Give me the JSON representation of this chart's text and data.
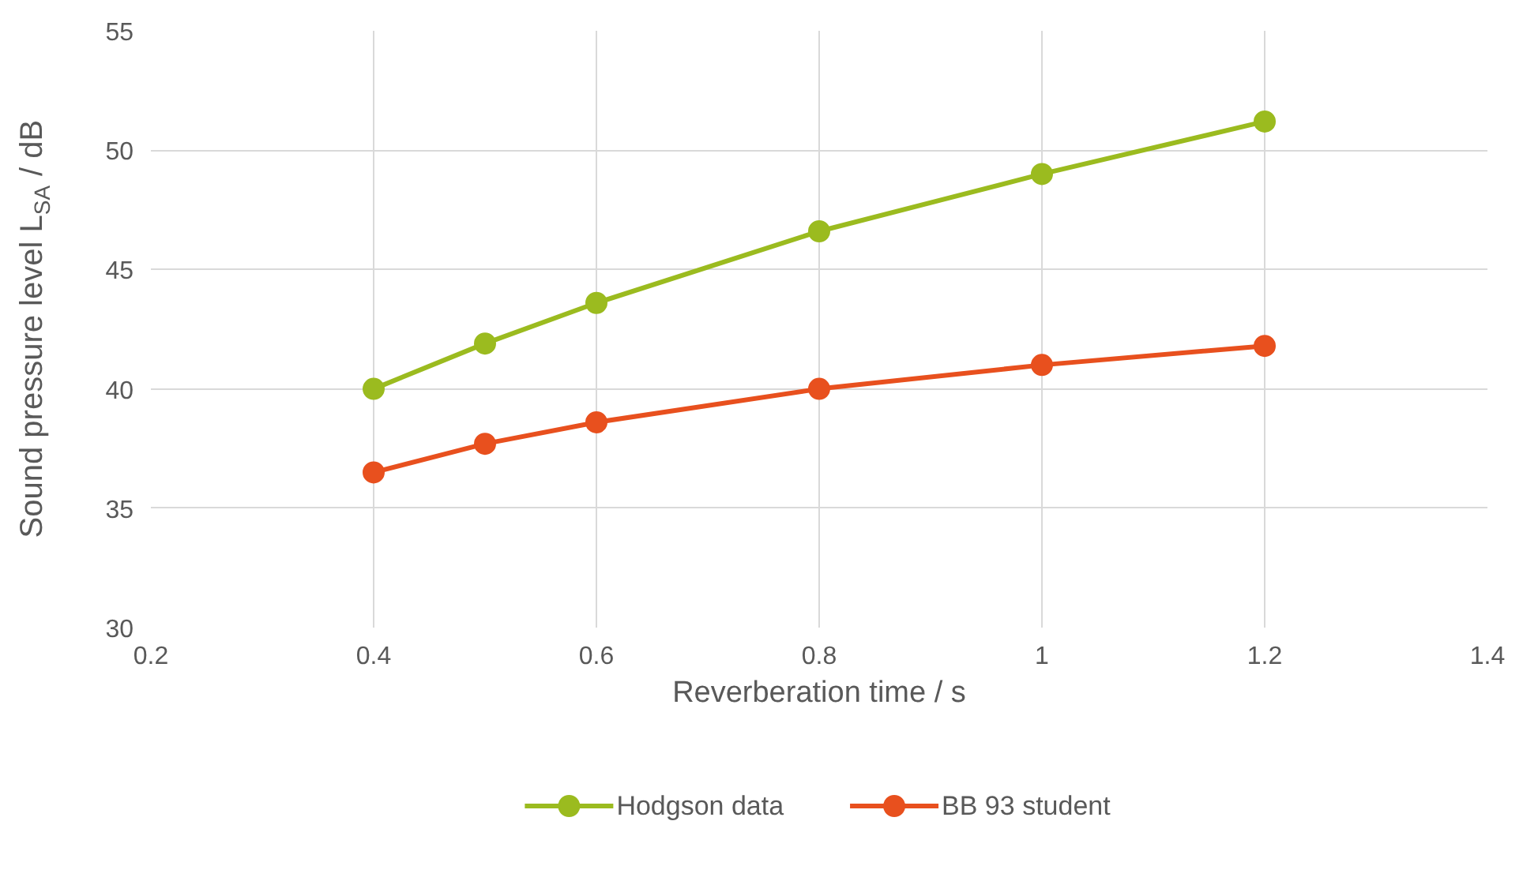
{
  "chart_data": {
    "type": "line",
    "xlabel": "Reverberation time / s",
    "ylabel": "Sound pressure level L$_{SA}$ / dB",
    "x": [
      0.4,
      0.5,
      0.6,
      0.8,
      1.0,
      1.2
    ],
    "series": [
      {
        "name": "Hodgson data",
        "color": "#9bbb1f",
        "values": [
          40.0,
          41.9,
          43.6,
          46.6,
          49.0,
          51.2
        ]
      },
      {
        "name": "BB 93 student",
        "color": "#e8501e",
        "values": [
          36.5,
          37.7,
          38.6,
          40.0,
          41.0,
          41.8
        ]
      }
    ],
    "xlim": [
      0.2,
      1.4
    ],
    "xticks": [
      0.2,
      0.4,
      0.6,
      0.8,
      1,
      1.2,
      1.4
    ],
    "ylim": [
      30,
      55
    ],
    "yticks": [
      30,
      35,
      40,
      45,
      50,
      55
    ],
    "grid": true,
    "legend": "bottom",
    "marker": "circle",
    "line_style": "solid"
  }
}
